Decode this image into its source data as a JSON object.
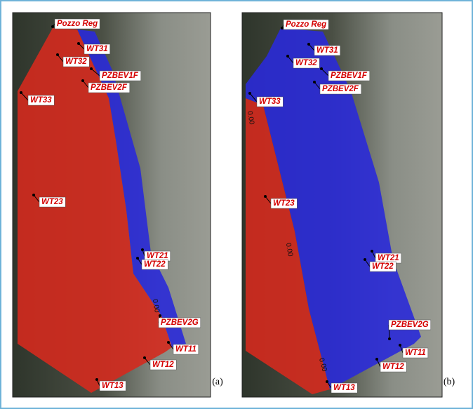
{
  "panels": [
    {
      "tag": "(a)",
      "wells": [
        "Pozzo Reg",
        "WT31",
        "WT32",
        "PZBEV1F",
        "PZBEV2F",
        "WT33",
        "WT23",
        "WT21",
        "WT22",
        "PZBEV2G",
        "WT11",
        "WT12",
        "WT13"
      ],
      "contours": [
        "0.00"
      ]
    },
    {
      "tag": "(b)",
      "wells": [
        "Pozzo Reg",
        "WT31",
        "WT32",
        "PZBEV1F",
        "PZBEV2F",
        "WT33",
        "WT23",
        "WT21",
        "WT22",
        "PZBEV2G",
        "WT11",
        "WT12",
        "WT13"
      ],
      "contours": [
        "0.00",
        "0.00",
        "0.00"
      ]
    }
  ]
}
